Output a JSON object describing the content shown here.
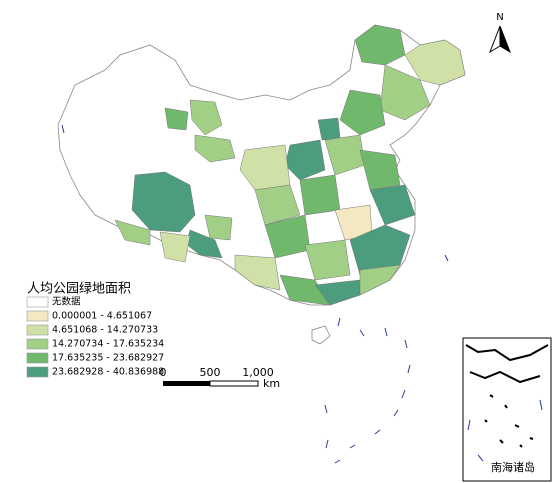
{
  "north_arrow": {
    "label": "N"
  },
  "legend": {
    "title": "人均公园绿地面积",
    "items": [
      {
        "label": "无数据",
        "color": "#ffffff"
      },
      {
        "label": "0.000001 - 4.651067",
        "color": "#f3e8c1"
      },
      {
        "label": "4.651068 - 14.270733",
        "color": "#cfe1a6"
      },
      {
        "label": "14.270734 - 17.635234",
        "color": "#a2cf86"
      },
      {
        "label": "17.635235 - 23.682927",
        "color": "#70b86b"
      },
      {
        "label": "23.682928 - 40.836988",
        "color": "#4c9c7e"
      }
    ]
  },
  "scale_bar": {
    "ticks": [
      "0",
      "500",
      "1,000"
    ],
    "unit": "km"
  },
  "inset": {
    "title": "南海诸岛"
  }
}
